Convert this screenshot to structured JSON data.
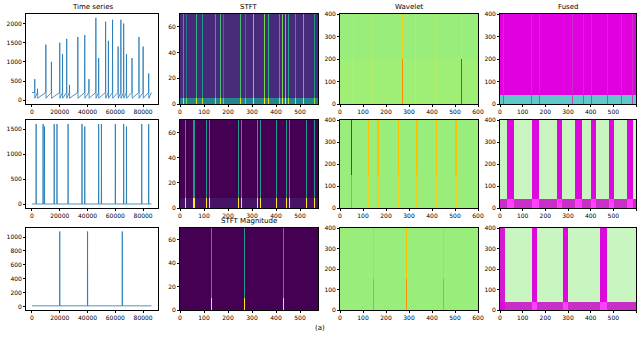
{
  "caption": "(a)",
  "chart_data": [
    {
      "type": "line",
      "title": "Time series",
      "color": "#1f77b4",
      "x": [
        0,
        1900,
        2000,
        2100,
        3900,
        4000,
        4100,
        9900,
        10000,
        10100,
        13900,
        14000,
        14100,
        19900,
        20000,
        20100,
        21900,
        22000,
        22100,
        24900,
        25000,
        25100,
        26900,
        27000,
        27100,
        32900,
        33000,
        33100,
        37900,
        38000,
        38100,
        40900,
        41000,
        41100,
        45900,
        46000,
        46100,
        47900,
        48000,
        48100,
        52900,
        53000,
        53100,
        54900,
        55000,
        55100,
        57900,
        58000,
        58100,
        61900,
        62000,
        62100,
        63900,
        64000,
        64100,
        65900,
        66000,
        66100,
        67900,
        68000,
        68100,
        71900,
        72000,
        72100,
        76900,
        77000,
        77100,
        79900,
        80000,
        80100,
        83900,
        84000,
        84100,
        86000
      ],
      "values": [
        200,
        200,
        550,
        50,
        200,
        300,
        50,
        200,
        1450,
        50,
        200,
        1000,
        50,
        200,
        1500,
        50,
        200,
        1200,
        50,
        200,
        1600,
        50,
        200,
        400,
        50,
        200,
        1650,
        50,
        200,
        1700,
        50,
        200,
        550,
        50,
        200,
        2150,
        50,
        200,
        1100,
        50,
        200,
        2050,
        50,
        200,
        1550,
        50,
        200,
        2100,
        50,
        200,
        1400,
        50,
        200,
        2100,
        50,
        200,
        2000,
        50,
        200,
        1200,
        50,
        200,
        1100,
        50,
        200,
        1650,
        50,
        200,
        1400,
        50,
        200,
        700,
        50,
        200
      ],
      "xlim": [
        -4300,
        90700
      ],
      "ylim": [
        -100,
        2250
      ],
      "xticks": [
        0,
        20000,
        40000,
        60000,
        80000
      ],
      "yticks": [
        0,
        500,
        1000,
        1500,
        2000
      ]
    },
    {
      "type": "heatmap",
      "title": "STFT",
      "xlim": [
        0,
        575
      ],
      "ylim": [
        0,
        70
      ],
      "xticks": [
        0,
        100,
        200,
        300,
        400,
        500
      ],
      "yticks": [
        0,
        20,
        40,
        60
      ],
      "zlim": [
        0,
        1
      ],
      "y_edges": [
        0,
        5,
        70
      ],
      "background": [
        0.45,
        0.12
      ],
      "stripes": [
        [
          12,
          15,
          0.95,
          0.6
        ],
        [
          26,
          29,
          0.8,
          0.4
        ],
        [
          66,
          69,
          0.95,
          0.65
        ],
        [
          92,
          95,
          0.9,
          0.55
        ],
        [
          132,
          135,
          0.95,
          0.65
        ],
        [
          146,
          149,
          0.9,
          0.6
        ],
        [
          166,
          169,
          0.95,
          0.7
        ],
        [
          179,
          182,
          0.8,
          0.4
        ],
        [
          219,
          222,
          0.95,
          0.7
        ],
        [
          252,
          255,
          0.95,
          0.7
        ],
        [
          272,
          275,
          0.8,
          0.4
        ],
        [
          306,
          309,
          1,
          0.8
        ],
        [
          319,
          322,
          0.9,
          0.55
        ],
        [
          352,
          355,
          1,
          0.8
        ],
        [
          366,
          369,
          0.95,
          0.65
        ],
        [
          386,
          389,
          1,
          0.8
        ],
        [
          412,
          415,
          0.9,
          0.6
        ],
        [
          426,
          429,
          1,
          0.8
        ],
        [
          439,
          442,
          1,
          0.75
        ],
        [
          452,
          455,
          0.9,
          0.6
        ],
        [
          479,
          482,
          0.9,
          0.55
        ],
        [
          512,
          515,
          0.95,
          0.7
        ],
        [
          532,
          535,
          0.9,
          0.6
        ],
        [
          559,
          562,
          0.85,
          0.5
        ]
      ]
    },
    {
      "type": "heatmap",
      "title": "Wavelet",
      "xlim": [
        0,
        600
      ],
      "ylim": [
        0,
        400
      ],
      "xticks": [
        0,
        100,
        200,
        300,
        400,
        500,
        600
      ],
      "yticks": [
        0,
        100,
        200,
        300,
        400
      ],
      "zlim": [
        0,
        1
      ],
      "y_edges": [
        0,
        200,
        400
      ],
      "background": [
        0.08,
        0.05
      ],
      "stripes": [
        [
          58,
          62,
          0.2,
          0.15
        ],
        [
          138,
          142,
          0.2,
          0.15
        ],
        [
          268,
          272,
          0.7,
          0.5
        ],
        [
          328,
          332,
          0.2,
          0.15
        ],
        [
          418,
          422,
          0.2,
          0.15
        ],
        [
          528,
          532,
          0.9,
          0.4
        ]
      ]
    },
    {
      "type": "heatmap",
      "title": "Fused",
      "xlim": [
        0,
        600
      ],
      "ylim": [
        0,
        400
      ],
      "xticks": [
        0,
        100,
        200,
        300,
        400,
        500,
        600
      ],
      "yticks": [
        0,
        100,
        200,
        300,
        400
      ],
      "zlim": [
        0,
        1
      ],
      "y_edges": [
        0,
        40,
        400
      ],
      "background": [
        0.3,
        0.95
      ],
      "stripes": [
        [
          13,
          16,
          0.6,
          0.7
        ],
        [
          69,
          72,
          0.6,
          0.7
        ],
        [
          138,
          141,
          0.6,
          0.7
        ],
        [
          173,
          176,
          0.6,
          0.7
        ],
        [
          228,
          231,
          0.6,
          0.7
        ],
        [
          263,
          266,
          0.6,
          0.7
        ],
        [
          319,
          322,
          0.6,
          0.7
        ],
        [
          367,
          370,
          0.6,
          0.7
        ],
        [
          402,
          405,
          0.6,
          0.7
        ],
        [
          444,
          447,
          0.6,
          0.7
        ],
        [
          472,
          475,
          0.6,
          0.7
        ],
        [
          534,
          537,
          0.6,
          0.7
        ],
        [
          583,
          586,
          0.6,
          0.7
        ]
      ]
    },
    {
      "type": "line",
      "color": "#1f77b4",
      "x": [
        0,
        2900,
        3000,
        3100,
        7900,
        8000,
        8100,
        8900,
        9000,
        9100,
        15900,
        16000,
        16100,
        17900,
        18000,
        18100,
        25900,
        26000,
        26100,
        35900,
        36000,
        36100,
        37900,
        38000,
        38100,
        47900,
        48000,
        48100,
        49900,
        50000,
        50100,
        59900,
        60000,
        60100,
        65900,
        66000,
        66100,
        67900,
        68000,
        68100,
        78900,
        79000,
        79100,
        83900,
        84000,
        84100,
        86000
      ],
      "values": [
        0,
        0,
        1600,
        0,
        0,
        1600,
        0,
        0,
        1550,
        0,
        0,
        1600,
        0,
        0,
        1600,
        0,
        0,
        1600,
        0,
        0,
        1600,
        0,
        0,
        1550,
        0,
        0,
        1600,
        0,
        0,
        1600,
        0,
        0,
        1600,
        0,
        0,
        1600,
        0,
        0,
        1550,
        0,
        0,
        1600,
        0,
        0,
        1600,
        0,
        0
      ],
      "xlim": [
        -4300,
        90700
      ],
      "ylim": [
        -80,
        1680
      ],
      "xticks": [
        0,
        20000,
        40000,
        60000,
        80000
      ],
      "yticks": [
        0,
        500,
        1000,
        1500
      ]
    },
    {
      "type": "heatmap",
      "xlim": [
        0,
        575
      ],
      "ylim": [
        0,
        70
      ],
      "xticks": [
        0,
        100,
        200,
        300,
        400,
        500
      ],
      "yticks": [
        0,
        20,
        40,
        60
      ],
      "zlim": [
        0,
        1
      ],
      "y_edges": [
        0,
        8,
        70
      ],
      "background": [
        0.05,
        0
      ],
      "stripes": [
        [
          20,
          24,
          1,
          0.55
        ],
        [
          53,
          57,
          1,
          0.55
        ],
        [
          60,
          64,
          1,
          0.55
        ],
        [
          107,
          111,
          1,
          0.55
        ],
        [
          120,
          124,
          1,
          0.55
        ],
        [
          173,
          177,
          1,
          0.55
        ],
        [
          240,
          244,
          1,
          0.55
        ],
        [
          253,
          257,
          1,
          0.55
        ],
        [
          320,
          324,
          1,
          0.55
        ],
        [
          333,
          337,
          1,
          0.55
        ],
        [
          400,
          404,
          1,
          0.55
        ],
        [
          440,
          444,
          1,
          0.55
        ],
        [
          453,
          457,
          1,
          0.55
        ],
        [
          527,
          531,
          1,
          0.55
        ],
        [
          560,
          564,
          1,
          0.55
        ]
      ]
    },
    {
      "type": "heatmap",
      "xlim": [
        0,
        600
      ],
      "ylim": [
        0,
        400
      ],
      "xticks": [
        0,
        100,
        200,
        300,
        400,
        500,
        600
      ],
      "yticks": [
        0,
        100,
        200,
        300,
        400
      ],
      "zlim": [
        0,
        1
      ],
      "y_edges": [
        0,
        150,
        400
      ],
      "background": [
        0.05,
        0.05
      ],
      "stripes": [
        [
          47,
          53,
          0.7,
          0.95
        ],
        [
          122,
          128,
          0.5,
          0.6
        ],
        [
          162,
          168,
          0.5,
          0.6
        ],
        [
          252,
          258,
          0.5,
          0.6
        ],
        [
          332,
          338,
          0.5,
          0.6
        ],
        [
          417,
          423,
          0.5,
          0.6
        ],
        [
          502,
          508,
          0.5,
          0.6
        ]
      ]
    },
    {
      "type": "heatmap",
      "xlim": [
        0,
        600
      ],
      "ylim": [
        0,
        400
      ],
      "xticks": [
        0,
        100,
        200,
        300,
        400,
        500,
        600
      ],
      "yticks": [
        0,
        100,
        200,
        300,
        400
      ],
      "zlim": [
        0,
        1
      ],
      "y_edges": [
        0,
        40,
        400
      ],
      "background": [
        0.7,
        0
      ],
      "stripes": [
        [
          30,
          60,
          1,
          0.9
        ],
        [
          140,
          170,
          1,
          0.9
        ],
        [
          250,
          275,
          1,
          0.9
        ],
        [
          330,
          360,
          1,
          0.9
        ],
        [
          400,
          425,
          1,
          0.9
        ],
        [
          480,
          505,
          1,
          0.9
        ],
        [
          560,
          585,
          1,
          0.9
        ]
      ]
    },
    {
      "type": "line",
      "color": "#1f77b4",
      "x": [
        0,
        19900,
        20000,
        20100,
        39900,
        40000,
        40100,
        64900,
        65000,
        65100,
        86000
      ],
      "values": [
        10,
        10,
        1080,
        10,
        10,
        1080,
        10,
        10,
        1080,
        10,
        10
      ],
      "xlim": [
        -4300,
        90700
      ],
      "ylim": [
        -50,
        1130
      ],
      "xticks": [
        0,
        20000,
        40000,
        60000,
        80000
      ],
      "yticks": [
        0,
        200,
        400,
        600,
        800,
        1000
      ]
    },
    {
      "type": "heatmap",
      "title": "STFT Magnitude",
      "xlim": [
        0,
        575
      ],
      "ylim": [
        0,
        70
      ],
      "xticks": [
        0,
        100,
        200,
        300,
        400,
        500
      ],
      "yticks": [
        0,
        20,
        40,
        60
      ],
      "zlim": [
        0,
        1
      ],
      "y_edges": [
        0,
        10,
        70
      ],
      "background": [
        0,
        0
      ],
      "stripes": [
        [
          131,
          135,
          1,
          0.55
        ],
        [
          265,
          269,
          1,
          0.55
        ],
        [
          431,
          435,
          1,
          0.55
        ]
      ]
    },
    {
      "type": "heatmap",
      "xlim": [
        0,
        600
      ],
      "ylim": [
        0,
        400
      ],
      "xticks": [
        0,
        100,
        200,
        300,
        400,
        500,
        600
      ],
      "yticks": [
        0,
        100,
        200,
        300,
        400
      ],
      "zlim": [
        0,
        1
      ],
      "y_edges": [
        0,
        150,
        400
      ],
      "background": [
        0.05,
        0.05
      ],
      "stripes": [
        [
          143,
          147,
          0.7,
          0.6
        ],
        [
          288,
          292,
          0.7,
          0.6
        ],
        [
          448,
          452,
          0.7,
          0.6
        ]
      ]
    },
    {
      "type": "heatmap",
      "xlim": [
        0,
        600
      ],
      "ylim": [
        0,
        400
      ],
      "xticks": [
        0,
        100,
        200,
        300,
        400,
        500,
        600
      ],
      "yticks": [
        0,
        100,
        200,
        300,
        400
      ],
      "zlim": [
        0,
        1
      ],
      "y_edges": [
        0,
        40,
        400
      ],
      "background": [
        0.7,
        0
      ],
      "stripes": [
        [
          2,
          20,
          0.9,
          0.8
        ],
        [
          140,
          165,
          1,
          0.9
        ],
        [
          280,
          300,
          1,
          0.9
        ],
        [
          440,
          470,
          1,
          0.9
        ]
      ]
    }
  ]
}
